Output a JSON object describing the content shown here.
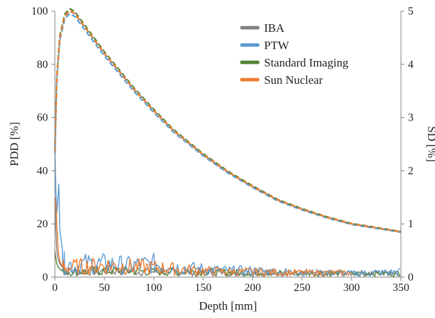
{
  "chart_data": {
    "type": "line",
    "xlabel": "Depth [mm]",
    "ylabel_left": "PDD [%]",
    "ylabel_right": "SD [%]",
    "xlim": [
      0,
      350
    ],
    "ylim_left": [
      0,
      100
    ],
    "ylim_right": [
      0,
      5
    ],
    "x_ticks": [
      "0",
      "50",
      "100",
      "150",
      "200",
      "250",
      "300",
      "350"
    ],
    "y_left_ticks": [
      "0",
      "20",
      "40",
      "60",
      "80",
      "100"
    ],
    "y_right_ticks": [
      "0",
      "1",
      "2",
      "3",
      "4",
      "5"
    ],
    "grid": false,
    "legend_position": "top-right",
    "series": [
      {
        "name": "IBA",
        "color": "#808080"
      },
      {
        "name": "PTW",
        "color": "#5b9bd5"
      },
      {
        "name": "Standard Imaging",
        "color": "#548235"
      },
      {
        "name": "Sun Nuclear",
        "color": "#ed7d31"
      }
    ],
    "pdd_curve": {
      "style": "dashed",
      "x": [
        0,
        2,
        5,
        10,
        15,
        20,
        30,
        40,
        50,
        60,
        70,
        80,
        90,
        100,
        120,
        150,
        175,
        200,
        225,
        250,
        275,
        300,
        325,
        350
      ],
      "y": [
        47,
        75,
        90,
        98,
        100,
        99,
        94,
        89,
        84,
        79.5,
        75,
        70.5,
        66.5,
        62.5,
        55,
        46,
        39.5,
        34,
        29,
        25.5,
        22.5,
        20,
        18.5,
        17
      ]
    },
    "sd_curves": {
      "axis": "right",
      "x": [
        0,
        1,
        2,
        3,
        4,
        5,
        7,
        10,
        15,
        20,
        30,
        50,
        75,
        100,
        125,
        150,
        175,
        200,
        225,
        250,
        275,
        300,
        325,
        350
      ],
      "IBA": [
        1.5,
        0.9,
        0.5,
        0.35,
        0.3,
        0.25,
        0.2,
        0.12,
        0.1,
        0.1,
        0.12,
        0.12,
        0.12,
        0.1,
        0.1,
        0.1,
        0.09,
        0.08,
        0.08,
        0.07,
        0.07,
        0.07,
        0.08,
        0.09
      ],
      "PTW": [
        2.5,
        1.6,
        1.2,
        1.5,
        1.75,
        0.9,
        0.6,
        0.2,
        0.25,
        0.2,
        0.25,
        0.25,
        0.22,
        0.25,
        0.18,
        0.15,
        0.12,
        0.12,
        0.1,
        0.09,
        0.08,
        0.07,
        0.08,
        0.1
      ],
      "Standard Imaging": [
        0.5,
        0.35,
        0.25,
        0.2,
        0.18,
        0.15,
        0.12,
        0.12,
        0.1,
        0.1,
        0.1,
        0.12,
        0.12,
        0.1,
        0.1,
        0.1,
        0.09,
        0.08,
        0.08,
        0.07,
        0.07,
        0.07,
        0.07,
        0.07
      ],
      "Sun Nuclear": [
        1.5,
        1.4,
        1.0,
        0.6,
        0.4,
        0.3,
        0.22,
        0.2,
        0.18,
        0.2,
        0.2,
        0.22,
        0.2,
        0.18,
        0.15,
        0.12,
        0.1,
        0.1,
        0.09,
        0.08,
        0.08,
        0.08,
        null,
        null
      ]
    }
  }
}
